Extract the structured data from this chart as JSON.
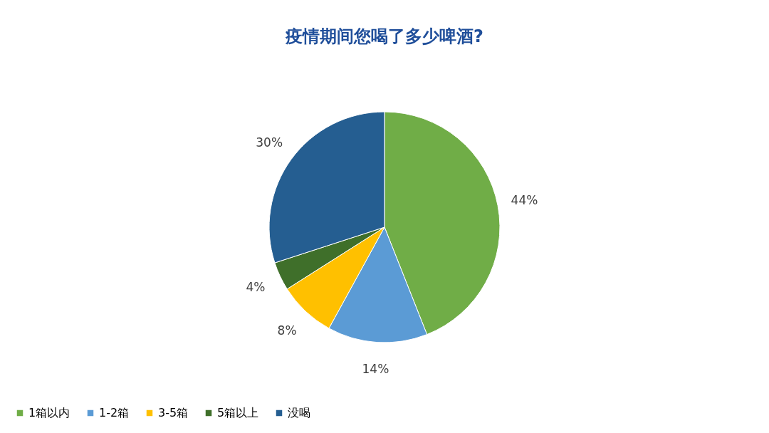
{
  "chart_data": {
    "type": "pie",
    "title": "疫情期间您喝了多少啤酒?",
    "categories": [
      "1箱以内",
      "1-2箱",
      "3-5箱",
      "5箱以上",
      "没喝"
    ],
    "values": [
      44,
      14,
      8,
      4,
      30
    ],
    "colors": [
      "#70ad47",
      "#5b9bd5",
      "#ffc000",
      "#3f6f2a",
      "#255e91"
    ],
    "value_labels": [
      "44%",
      "14%",
      "8%",
      "4%",
      "30%"
    ],
    "legend": "bottom"
  }
}
